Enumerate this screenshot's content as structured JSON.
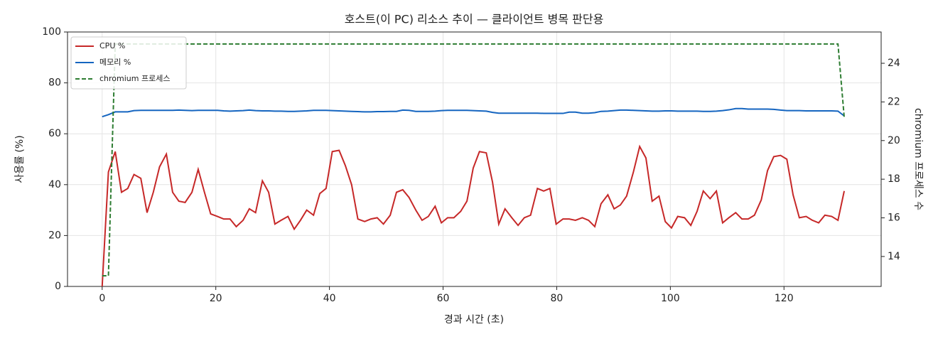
{
  "chart_data": {
    "type": "line",
    "title": "호스트(이 PC) 리소스 추이 — 클라이언트 병목 판단용",
    "x_label": "경과 시간 (초)",
    "y_label": "사용률 (%)",
    "y2_label": "chromium 프로세스 수",
    "x": [
      0,
      1.1,
      2.3,
      3.4,
      4.5,
      5.6,
      6.8,
      7.9,
      9.0,
      10.1,
      11.3,
      12.4,
      13.5,
      14.6,
      15.8,
      16.9,
      18.0,
      19.1,
      20.3,
      21.4,
      22.5,
      23.6,
      24.8,
      25.9,
      27.0,
      28.2,
      29.3,
      30.4,
      31.5,
      32.7,
      33.8,
      34.9,
      36.0,
      37.2,
      38.3,
      39.4,
      40.5,
      41.7,
      42.8,
      43.9,
      45.0,
      46.2,
      47.3,
      48.4,
      49.5,
      50.7,
      51.8,
      52.9,
      54.0,
      55.2,
      56.3,
      57.4,
      58.6,
      59.7,
      60.8,
      61.9,
      63.1,
      64.2,
      65.3,
      66.4,
      67.6,
      68.7,
      69.8,
      70.9,
      72.1,
      73.2,
      74.3,
      75.4,
      76.6,
      77.7,
      78.8,
      79.9,
      81.1,
      82.2,
      83.3,
      84.5,
      85.6,
      86.7,
      87.8,
      89.0,
      90.1,
      91.2,
      92.3,
      93.5,
      94.6,
      95.7,
      96.8,
      98.0,
      99.1,
      100.2,
      101.3,
      102.5,
      103.6,
      104.7,
      105.8,
      107.0,
      108.1,
      109.2,
      110.3,
      111.5,
      112.6,
      113.7,
      114.8,
      116.0,
      117.1,
      118.2,
      119.4,
      120.5,
      121.6,
      122.7,
      123.9,
      125.0,
      126.1,
      127.2,
      128.4,
      129.5,
      130.6
    ],
    "series": [
      {
        "name": "CPU %",
        "color": "#c62828",
        "linestyle": "solid",
        "values": [
          0,
          45,
          53,
          37,
          38.5,
          44,
          42.5,
          29,
          37,
          47,
          52,
          37,
          33.5,
          33,
          37,
          46,
          37,
          28.5,
          27.5,
          26.5,
          26.5,
          23.5,
          26,
          30.5,
          29,
          41.5,
          37,
          24.5,
          26,
          27.5,
          22.5,
          26,
          30,
          28,
          36.5,
          38.5,
          53,
          53.5,
          47.5,
          40,
          26.5,
          25.5,
          26.5,
          27,
          24.5,
          28,
          37,
          38,
          35,
          30,
          26,
          27.5,
          31.5,
          25,
          27,
          27,
          29.5,
          33.5,
          46.5,
          53,
          52.5,
          41,
          24.5,
          30.5,
          27,
          24,
          27,
          28,
          38.5,
          37.5,
          38.5,
          24.5,
          26.5,
          26.5,
          26,
          27,
          26,
          23.5,
          32.5,
          36,
          30.5,
          32,
          35.5,
          45,
          55,
          50.5,
          33.5,
          35.5,
          25.5,
          23,
          27.5,
          27,
          24,
          29.5,
          37.5,
          34.5,
          37.5,
          25,
          27,
          29,
          26.5,
          26.5,
          28,
          34,
          45.5,
          51,
          51.5,
          50,
          36,
          27,
          27.5,
          26,
          25,
          28,
          27.5,
          26,
          37.5
        ]
      },
      {
        "name": "메모리 %",
        "color": "#1565c0",
        "linestyle": "solid",
        "values": [
          66.7,
          67.5,
          68.6,
          68.6,
          68.6,
          69.1,
          69.2,
          69.2,
          69.2,
          69.2,
          69.2,
          69.2,
          69.3,
          69.2,
          69.1,
          69.2,
          69.2,
          69.2,
          69.2,
          69.0,
          68.9,
          69.0,
          69.1,
          69.3,
          69.1,
          69.0,
          69.0,
          68.9,
          68.9,
          68.8,
          68.8,
          68.9,
          69.0,
          69.2,
          69.2,
          69.2,
          69.1,
          69.0,
          68.9,
          68.8,
          68.7,
          68.6,
          68.6,
          68.7,
          68.7,
          68.8,
          68.8,
          69.3,
          69.2,
          68.8,
          68.8,
          68.8,
          68.9,
          69.1,
          69.2,
          69.2,
          69.2,
          69.2,
          69.1,
          69.0,
          68.9,
          68.4,
          68.1,
          68.1,
          68.1,
          68.1,
          68.1,
          68.1,
          68.1,
          68.0,
          68.0,
          68.0,
          68.0,
          68.5,
          68.5,
          68.1,
          68.1,
          68.3,
          68.8,
          68.9,
          69.1,
          69.3,
          69.3,
          69.2,
          69.1,
          69.0,
          68.9,
          68.9,
          69.0,
          69.0,
          68.9,
          68.9,
          68.9,
          68.9,
          68.8,
          68.8,
          68.9,
          69.1,
          69.4,
          69.9,
          69.9,
          69.7,
          69.7,
          69.7,
          69.7,
          69.6,
          69.3,
          69.1,
          69.1,
          69.1,
          69.0,
          69.0,
          69.0,
          69.0,
          69.0,
          68.9,
          67.0
        ]
      },
      {
        "name": "chromium 프로세스",
        "color": "#2e7d32",
        "linestyle": "dashed",
        "axis": "y2",
        "values": [
          13,
          13,
          25,
          25,
          25,
          25,
          25,
          25,
          25,
          25,
          25,
          25,
          25,
          25,
          25,
          25,
          25,
          25,
          25,
          25,
          25,
          25,
          25,
          25,
          25,
          25,
          25,
          25,
          25,
          25,
          25,
          25,
          25,
          25,
          25,
          25,
          25,
          25,
          25,
          25,
          25,
          25,
          25,
          25,
          25,
          25,
          25,
          25,
          25,
          25,
          25,
          25,
          25,
          25,
          25,
          25,
          25,
          25,
          25,
          25,
          25,
          25,
          25,
          25,
          25,
          25,
          25,
          25,
          25,
          25,
          25,
          25,
          25,
          25,
          25,
          25,
          25,
          25,
          25,
          25,
          25,
          25,
          25,
          25,
          25,
          25,
          25,
          25,
          25,
          25,
          25,
          25,
          25,
          25,
          25,
          25,
          25,
          25,
          25,
          25,
          25,
          25,
          25,
          25,
          25,
          25,
          25,
          25,
          25,
          25,
          25,
          25,
          25,
          25,
          25,
          25,
          21.2
        ]
      }
    ],
    "xlim": [
      -6.1,
      137.1
    ],
    "xticks": [
      0,
      20,
      40,
      60,
      80,
      100,
      120
    ],
    "ylim": [
      0,
      100
    ],
    "yticks": [
      0,
      20,
      40,
      60,
      80,
      100
    ],
    "y2lim": [
      12.45,
      25.62
    ],
    "y2ticks": [
      14,
      16,
      18,
      20,
      22,
      24
    ],
    "grid": true,
    "legend": "upper-left"
  }
}
